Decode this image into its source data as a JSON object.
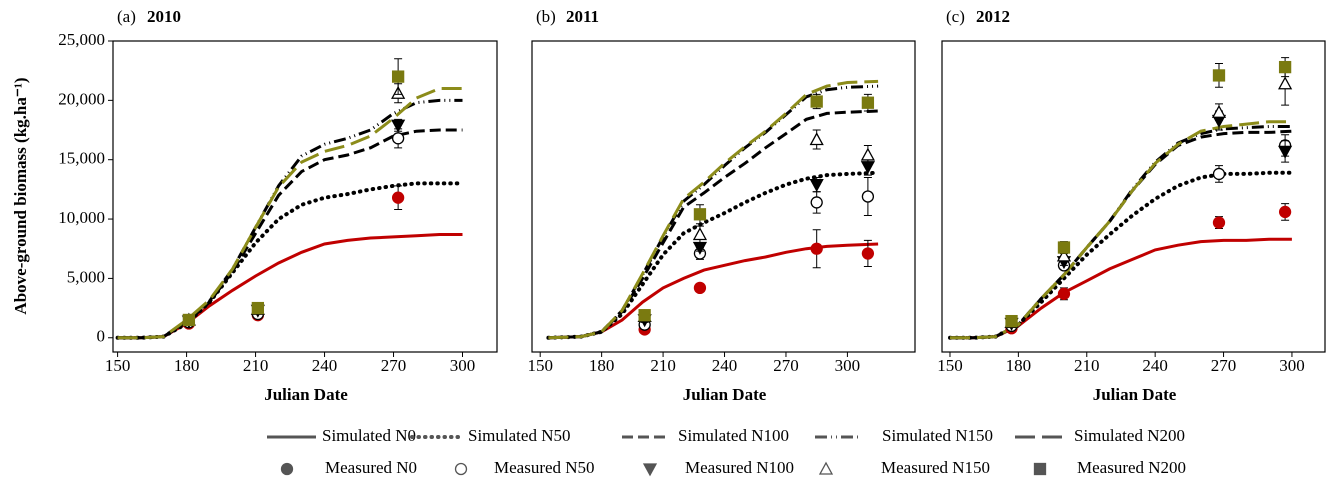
{
  "chart_data": [
    {
      "type": "line",
      "panel": "(a)",
      "title": "2010",
      "xlabel": "Julian Date",
      "ylabel": "Above-ground biomass (kg.ha⁻¹)",
      "xlim": [
        148,
        315
      ],
      "ylim": [
        -1200,
        25000
      ],
      "xticks": [
        150,
        180,
        210,
        240,
        270,
        300
      ],
      "yticks": [
        0,
        {
          "value": 5000,
          "label": "5,000"
        },
        {
          "value": 10000,
          "label": "10,000"
        },
        {
          "value": 15000,
          "label": "15,000"
        },
        {
          "value": 20000,
          "label": "20,000"
        },
        {
          "value": 25000,
          "label": "25,000"
        }
      ],
      "series": [
        {
          "name": "Simulated N0",
          "type": "line",
          "style": "solid",
          "color": "#c00000",
          "x": [
            150,
            160,
            170,
            180,
            190,
            200,
            210,
            220,
            230,
            240,
            250,
            260,
            270,
            280,
            290,
            300
          ],
          "values": [
            0,
            0,
            100,
            1200,
            2700,
            4000,
            5200,
            6300,
            7200,
            7900,
            8200,
            8400,
            8500,
            8600,
            8700,
            8700
          ]
        },
        {
          "name": "Simulated N50",
          "type": "line",
          "style": "dotted",
          "color": "#000000",
          "x": [
            150,
            160,
            170,
            180,
            190,
            200,
            210,
            220,
            230,
            240,
            250,
            260,
            270,
            280,
            290,
            300
          ],
          "values": [
            0,
            0,
            100,
            1200,
            3000,
            5500,
            8000,
            10000,
            11200,
            11800,
            12100,
            12500,
            12800,
            13000,
            13000,
            13000
          ]
        },
        {
          "name": "Simulated N100",
          "type": "line",
          "style": "dashed",
          "color": "#000000",
          "x": [
            150,
            160,
            170,
            180,
            190,
            200,
            210,
            220,
            230,
            240,
            250,
            260,
            270,
            280,
            290,
            300
          ],
          "values": [
            0,
            0,
            100,
            1300,
            3000,
            5600,
            8800,
            12000,
            14000,
            15000,
            15400,
            16000,
            17000,
            17400,
            17500,
            17500
          ]
        },
        {
          "name": "Simulated N150",
          "type": "line",
          "style": "dashdot",
          "color": "#000000",
          "x": [
            150,
            160,
            170,
            180,
            190,
            200,
            210,
            220,
            230,
            240,
            250,
            260,
            270,
            280,
            290,
            300
          ],
          "values": [
            0,
            0,
            100,
            1400,
            3100,
            5800,
            9300,
            12800,
            15300,
            16300,
            16800,
            17500,
            18900,
            19800,
            20000,
            20000
          ]
        },
        {
          "name": "Simulated N200",
          "type": "line",
          "style": "longdash",
          "color": "#8c8c1a",
          "x": [
            150,
            160,
            170,
            180,
            190,
            200,
            210,
            220,
            230,
            240,
            250,
            260,
            270,
            280,
            290,
            300
          ],
          "values": [
            0,
            0,
            100,
            1500,
            3200,
            5800,
            9300,
            12700,
            14800,
            15700,
            16200,
            17000,
            18500,
            20200,
            21000,
            21000
          ]
        },
        {
          "name": "Measured N0",
          "type": "scatter",
          "marker": "circle",
          "filled": true,
          "color": "#c00000",
          "x": [
            181,
            211,
            272
          ],
          "values": [
            1200,
            1900,
            11800
          ],
          "errors": [
            200,
            200,
            1000
          ]
        },
        {
          "name": "Measured N50",
          "type": "scatter",
          "marker": "circle",
          "filled": false,
          "color": "#000000",
          "x": [
            181,
            211,
            272
          ],
          "values": [
            1300,
            2000,
            16800
          ],
          "errors": [
            200,
            200,
            800
          ]
        },
        {
          "name": "Measured N100",
          "type": "scatter",
          "marker": "triangle-down",
          "filled": true,
          "color": "#000000",
          "x": [
            181,
            211,
            272
          ],
          "values": [
            1400,
            2300,
            17900
          ],
          "errors": [
            200,
            200,
            500
          ]
        },
        {
          "name": "Measured N150",
          "type": "scatter",
          "marker": "triangle-up",
          "filled": false,
          "color": "#000000",
          "x": [
            181,
            211,
            272
          ],
          "values": [
            1500,
            2400,
            20600
          ],
          "errors": [
            200,
            200,
            800
          ]
        },
        {
          "name": "Measured N200",
          "type": "scatter",
          "marker": "square",
          "filled": true,
          "color": "#7a7a10",
          "x": [
            181,
            211,
            272
          ],
          "values": [
            1500,
            2500,
            22000
          ],
          "errors": [
            200,
            200,
            1500
          ]
        }
      ]
    },
    {
      "type": "line",
      "panel": "(b)",
      "title": "2011",
      "xlabel": "Julian Date",
      "xlim": [
        146,
        333
      ],
      "ylim": [
        -1200,
        25000
      ],
      "xticks": [
        150,
        180,
        210,
        240,
        270,
        300
      ],
      "series": [
        {
          "name": "Simulated N0",
          "type": "line",
          "style": "solid",
          "color": "#c00000",
          "x": [
            154,
            170,
            180,
            190,
            200,
            210,
            220,
            230,
            240,
            250,
            260,
            270,
            280,
            290,
            300,
            315
          ],
          "values": [
            0,
            100,
            500,
            1500,
            3000,
            4200,
            5000,
            5700,
            6100,
            6500,
            6800,
            7200,
            7500,
            7700,
            7800,
            7900
          ]
        },
        {
          "name": "Simulated N50",
          "type": "line",
          "style": "dotted",
          "color": "#000000",
          "x": [
            154,
            170,
            180,
            190,
            200,
            210,
            220,
            230,
            240,
            250,
            260,
            270,
            280,
            290,
            300,
            315
          ],
          "values": [
            0,
            100,
            500,
            2000,
            4500,
            7000,
            8800,
            9700,
            10500,
            11400,
            12200,
            12900,
            13400,
            13700,
            13800,
            13900
          ]
        },
        {
          "name": "Simulated N100",
          "type": "line",
          "style": "dashed",
          "color": "#000000",
          "x": [
            154,
            170,
            180,
            190,
            200,
            210,
            220,
            230,
            240,
            250,
            260,
            270,
            280,
            290,
            300,
            315
          ],
          "values": [
            0,
            100,
            500,
            2200,
            5000,
            8000,
            11000,
            12200,
            13500,
            14700,
            16000,
            17200,
            18400,
            18900,
            19000,
            19100
          ]
        },
        {
          "name": "Simulated N150",
          "type": "line",
          "style": "dashdot",
          "color": "#000000",
          "x": [
            154,
            170,
            180,
            190,
            200,
            210,
            220,
            230,
            240,
            250,
            260,
            270,
            280,
            290,
            300,
            315
          ],
          "values": [
            0,
            100,
            500,
            2300,
            5300,
            8500,
            11500,
            12900,
            14500,
            16000,
            17300,
            18800,
            20300,
            20900,
            21100,
            21200
          ]
        },
        {
          "name": "Simulated N200",
          "type": "line",
          "style": "longdash",
          "color": "#8c8c1a",
          "x": [
            154,
            170,
            180,
            190,
            200,
            210,
            220,
            230,
            240,
            250,
            260,
            270,
            280,
            290,
            300,
            315
          ],
          "values": [
            0,
            100,
            500,
            2300,
            5400,
            8600,
            11700,
            13100,
            14700,
            16100,
            17400,
            18900,
            20500,
            21200,
            21500,
            21600
          ]
        },
        {
          "name": "Measured N0",
          "type": "scatter",
          "marker": "circle",
          "filled": true,
          "color": "#c00000",
          "x": [
            201,
            228,
            285,
            310
          ],
          "values": [
            700,
            4200,
            7500,
            7100
          ],
          "errors": [
            200,
            200,
            1600,
            1100
          ]
        },
        {
          "name": "Measured N50",
          "type": "scatter",
          "marker": "circle",
          "filled": false,
          "color": "#000000",
          "x": [
            201,
            228,
            285,
            310
          ],
          "values": [
            1100,
            7100,
            11400,
            11900
          ],
          "errors": [
            200,
            500,
            900,
            1600
          ]
        },
        {
          "name": "Measured N100",
          "type": "scatter",
          "marker": "triangle-down",
          "filled": true,
          "color": "#000000",
          "x": [
            201,
            228,
            285,
            310
          ],
          "values": [
            1500,
            7600,
            12900,
            14400
          ],
          "errors": [
            200,
            300,
            600,
            700
          ]
        },
        {
          "name": "Measured N150",
          "type": "scatter",
          "marker": "triangle-up",
          "filled": false,
          "color": "#000000",
          "x": [
            201,
            228,
            285,
            310
          ],
          "values": [
            1800,
            8700,
            16700,
            15400
          ],
          "errors": [
            200,
            700,
            800,
            800
          ]
        },
        {
          "name": "Measured N200",
          "type": "scatter",
          "marker": "square",
          "filled": true,
          "color": "#7a7a10",
          "x": [
            201,
            228,
            285,
            310
          ],
          "values": [
            1900,
            10400,
            19900,
            19800
          ],
          "errors": [
            200,
            800,
            600,
            700
          ]
        }
      ]
    },
    {
      "type": "line",
      "panel": "(c)",
      "title": "2012",
      "xlabel": "Julian Date",
      "xlim": [
        146.5,
        314.5
      ],
      "ylim": [
        -1200,
        25000
      ],
      "xticks": [
        150,
        180,
        210,
        240,
        270,
        300
      ],
      "series": [
        {
          "name": "Simulated N0",
          "type": "line",
          "style": "solid",
          "color": "#c00000",
          "x": [
            150,
            160,
            170,
            180,
            190,
            200,
            210,
            220,
            230,
            240,
            250,
            260,
            270,
            280,
            290,
            300
          ],
          "values": [
            0,
            0,
            100,
            1000,
            2500,
            3800,
            4800,
            5800,
            6600,
            7400,
            7800,
            8100,
            8200,
            8200,
            8300,
            8300
          ]
        },
        {
          "name": "Simulated N50",
          "type": "line",
          "style": "dotted",
          "color": "#000000",
          "x": [
            150,
            160,
            170,
            180,
            190,
            200,
            210,
            220,
            230,
            240,
            250,
            260,
            270,
            280,
            290,
            300
          ],
          "values": [
            0,
            0,
            100,
            1100,
            3000,
            5000,
            7000,
            8700,
            10300,
            11700,
            12800,
            13500,
            13800,
            13800,
            13900,
            13900
          ]
        },
        {
          "name": "Simulated N100",
          "type": "line",
          "style": "dashed",
          "color": "#000000",
          "x": [
            150,
            160,
            170,
            180,
            190,
            200,
            210,
            220,
            230,
            240,
            250,
            260,
            270,
            280,
            290,
            300
          ],
          "values": [
            0,
            0,
            100,
            1100,
            3300,
            5300,
            7600,
            9800,
            12400,
            14600,
            16200,
            16900,
            17200,
            17300,
            17300,
            17400
          ]
        },
        {
          "name": "Simulated N150",
          "type": "line",
          "style": "dashdot",
          "color": "#000000",
          "x": [
            150,
            160,
            170,
            180,
            190,
            200,
            210,
            220,
            230,
            240,
            250,
            260,
            270,
            280,
            290,
            300
          ],
          "values": [
            0,
            0,
            100,
            1100,
            3300,
            5300,
            7600,
            9800,
            12500,
            14800,
            16400,
            17200,
            17600,
            17700,
            17800,
            17800
          ]
        },
        {
          "name": "Simulated N200",
          "type": "line",
          "style": "longdash",
          "color": "#8c8c1a",
          "x": [
            150,
            160,
            170,
            180,
            190,
            200,
            210,
            220,
            230,
            240,
            250,
            260,
            270,
            280,
            290,
            300
          ],
          "values": [
            0,
            0,
            100,
            1100,
            3300,
            5300,
            7600,
            9800,
            12400,
            14700,
            16300,
            17400,
            17800,
            18000,
            18200,
            18200
          ]
        },
        {
          "name": "Measured N0",
          "type": "scatter",
          "marker": "circle",
          "filled": true,
          "color": "#c00000",
          "x": [
            177,
            200,
            268,
            297
          ],
          "values": [
            800,
            3700,
            9700,
            10600
          ],
          "errors": [
            200,
            500,
            500,
            700
          ]
        },
        {
          "name": "Measured N50",
          "type": "scatter",
          "marker": "circle",
          "filled": false,
          "color": "#000000",
          "x": [
            177,
            200,
            268,
            297
          ],
          "values": [
            1000,
            6100,
            13800,
            16200
          ],
          "errors": [
            200,
            300,
            700,
            900
          ]
        },
        {
          "name": "Measured N100",
          "type": "scatter",
          "marker": "triangle-down",
          "filled": true,
          "color": "#000000",
          "x": [
            177,
            200,
            268,
            297
          ],
          "values": [
            1200,
            6400,
            18300,
            15700
          ],
          "errors": [
            200,
            300,
            800,
            900
          ]
        },
        {
          "name": "Measured N150",
          "type": "scatter",
          "marker": "triangle-up",
          "filled": false,
          "color": "#000000",
          "x": [
            177,
            200,
            268,
            297
          ],
          "values": [
            1300,
            6900,
            19000,
            21400
          ],
          "errors": [
            200,
            300,
            700,
            1800
          ]
        },
        {
          "name": "Measured N200",
          "type": "scatter",
          "marker": "square",
          "filled": true,
          "color": "#7a7a10",
          "x": [
            177,
            200,
            268,
            297
          ],
          "values": [
            1400,
            7600,
            22100,
            22800
          ],
          "errors": [
            200,
            500,
            1000,
            800
          ]
        }
      ]
    }
  ],
  "legend": {
    "color": "#555555"
  }
}
